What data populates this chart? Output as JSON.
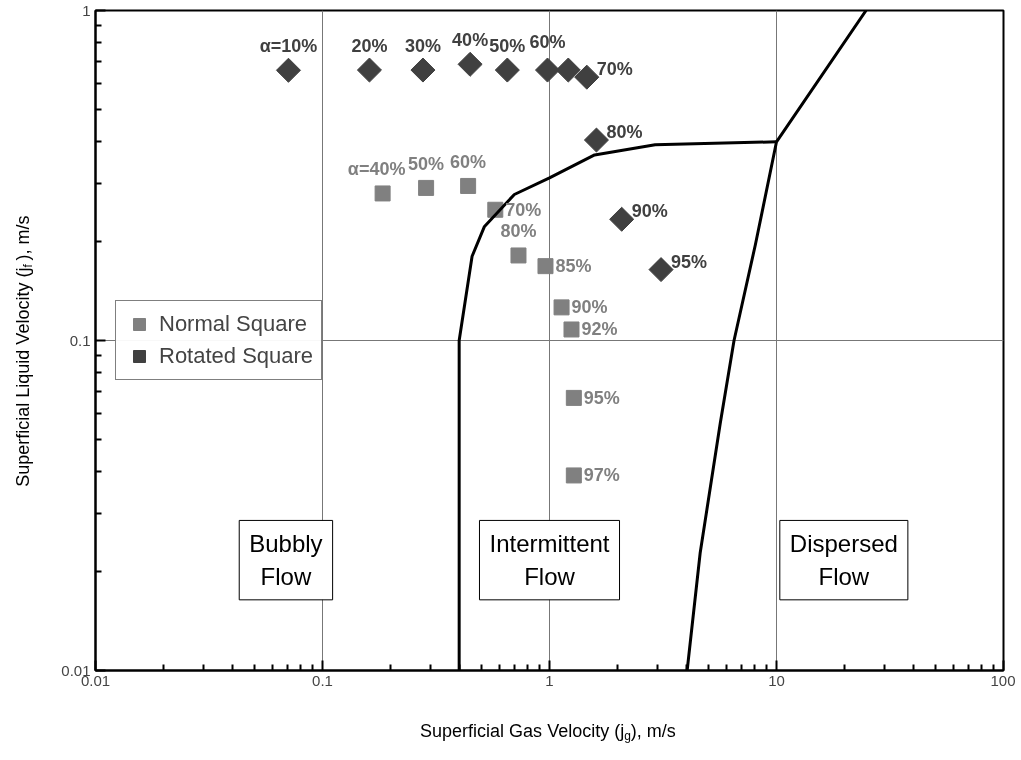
{
  "chart_data": {
    "type": "scatter",
    "xlabel": "Superficial Gas Velocity (j$_{g}$), m/s",
    "ylabel": "Superficial Liquid Velocity (j$_{f}$), m/s",
    "log": "xy",
    "grid": true,
    "legend": "left",
    "xlim": [
      0.01,
      100
    ],
    "ylim": [
      0.01,
      1
    ],
    "xticks": [
      0.01,
      0.1,
      1,
      10,
      100
    ],
    "yticks": [
      0.01,
      0.1,
      1
    ],
    "series": [
      {
        "name": "Normal Square",
        "marker": "square",
        "color": "#808080",
        "x": [
          0.184,
          0.286,
          0.438,
          0.577,
          0.73,
          0.96,
          1.13,
          1.25,
          1.28,
          1.28
        ],
        "values": [
          0.279,
          0.29,
          0.294,
          0.249,
          0.181,
          0.168,
          0.126,
          0.108,
          0.067,
          0.039
        ]
      },
      {
        "name": "Rotated Square",
        "marker": "diamond",
        "color": "#404040",
        "x": [
          0.0708,
          0.161,
          0.277,
          0.447,
          0.652,
          0.98,
          1.21,
          1.46,
          1.61,
          2.08,
          3.1
        ],
        "values": [
          0.659,
          0.66,
          0.66,
          0.687,
          0.66,
          0.66,
          0.66,
          0.628,
          0.405,
          0.233,
          0.164
        ]
      },
      {
        "type": "line",
        "color": "#000000",
        "x": [
          0.4,
          0.4,
          0.456,
          0.516,
          0.7,
          1.0,
          1.58,
          2.92,
          10
        ],
        "values": [
          0.01,
          0.1,
          0.18,
          0.221,
          0.277,
          0.311,
          0.365,
          0.392,
          0.4
        ]
      },
      {
        "type": "line",
        "color": "#000000",
        "x": [
          4.04,
          4.61,
          5.65,
          6.5,
          8.07,
          10,
          24.8
        ],
        "values": [
          0.01,
          0.0227,
          0.056,
          0.1,
          0.195,
          0.4,
          1
        ]
      }
    ],
    "annotations": [
      {
        "text": "α=40%",
        "x": 0.184,
        "y": 0.279
      },
      {
        "text": "50%",
        "x": 0.286,
        "y": 0.29
      },
      {
        "text": "60%",
        "x": 0.438,
        "y": 0.294
      },
      {
        "text": "70%",
        "x": 0.577,
        "y": 0.249
      },
      {
        "text": "80%",
        "x": 0.73,
        "y": 0.181
      },
      {
        "text": "85%",
        "x": 0.96,
        "y": 0.168
      },
      {
        "text": "90%",
        "x": 1.13,
        "y": 0.126
      },
      {
        "text": "92%",
        "x": 1.25,
        "y": 0.108
      },
      {
        "text": "95%",
        "x": 1.28,
        "y": 0.067
      },
      {
        "text": "97%",
        "x": 1.28,
        "y": 0.039
      },
      {
        "text": "α=10%",
        "x": 0.0708,
        "y": 0.659
      },
      {
        "text": "20%",
        "x": 0.161,
        "y": 0.66
      },
      {
        "text": "30%",
        "x": 0.277,
        "y": 0.66
      },
      {
        "text": "40%",
        "x": 0.447,
        "y": 0.687
      },
      {
        "text": "50%",
        "x": 0.652,
        "y": 0.66
      },
      {
        "text": "60%",
        "x": 0.98,
        "y": 0.66
      },
      {
        "text": "70%",
        "x": 1.46,
        "y": 0.628
      },
      {
        "text": "80%",
        "x": 1.61,
        "y": 0.405
      },
      {
        "text": "90%",
        "x": 2.08,
        "y": 0.233
      },
      {
        "text": "95%",
        "x": 3.1,
        "y": 0.164
      },
      "Bubbly\nFlow",
      "Intermittent\nFlow",
      "Dispersed\nFlow"
    ]
  }
}
